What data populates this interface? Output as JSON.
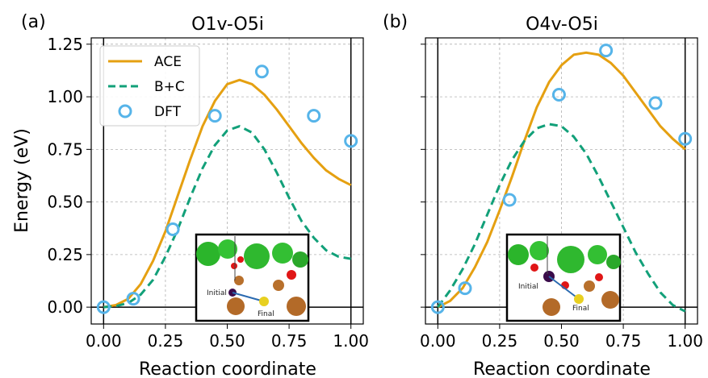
{
  "figure": {
    "ylabel": "Energy (eV)",
    "legend": {
      "placement": "top-left of panel (a)",
      "entries": [
        {
          "label": "ACE",
          "style": "solid line",
          "color": "#E5A011"
        },
        {
          "label": "B+C",
          "style": "dashed line",
          "color": "#12A079"
        },
        {
          "label": "DFT",
          "style": "open circle",
          "color": "#56B4E9"
        }
      ]
    },
    "inset_labels": {
      "initial": "Initial",
      "final": "Final"
    }
  },
  "chart_data": [
    {
      "type": "line",
      "panel_letter": "(a)",
      "title": "O1v-O5i",
      "xlabel": "Reaction coordinate",
      "ylabel": "Energy (eV)",
      "xlim": [
        -0.05,
        1.05
      ],
      "ylim": [
        -0.08,
        1.28
      ],
      "xticks": [
        "0.00",
        "0.25",
        "0.50",
        "0.75",
        "1.00"
      ],
      "yticks": [
        "0.00",
        "0.25",
        "0.50",
        "0.75",
        "1.00",
        "1.25"
      ],
      "grid": true,
      "series": [
        {
          "name": "ACE",
          "color": "#E5A011",
          "style": "solid",
          "x": [
            0.0,
            0.05,
            0.1,
            0.15,
            0.2,
            0.25,
            0.3,
            0.35,
            0.4,
            0.45,
            0.5,
            0.55,
            0.6,
            0.65,
            0.7,
            0.75,
            0.8,
            0.85,
            0.9,
            0.95,
            1.0
          ],
          "y": [
            0.0,
            0.01,
            0.04,
            0.11,
            0.22,
            0.36,
            0.53,
            0.7,
            0.86,
            0.98,
            1.06,
            1.08,
            1.06,
            1.01,
            0.94,
            0.86,
            0.78,
            0.71,
            0.65,
            0.61,
            0.58
          ]
        },
        {
          "name": "B+C",
          "color": "#12A079",
          "style": "dashed",
          "x": [
            0.0,
            0.05,
            0.1,
            0.15,
            0.2,
            0.25,
            0.3,
            0.35,
            0.4,
            0.45,
            0.5,
            0.55,
            0.6,
            0.65,
            0.7,
            0.75,
            0.8,
            0.85,
            0.9,
            0.95,
            1.0
          ],
          "y": [
            0.0,
            0.005,
            0.02,
            0.06,
            0.13,
            0.24,
            0.37,
            0.52,
            0.66,
            0.77,
            0.84,
            0.86,
            0.83,
            0.75,
            0.64,
            0.52,
            0.41,
            0.33,
            0.27,
            0.24,
            0.23
          ]
        },
        {
          "name": "DFT",
          "color": "#56B4E9",
          "style": "markers",
          "x": [
            0.0,
            0.12,
            0.28,
            0.45,
            0.64,
            0.85,
            1.0
          ],
          "y": [
            0.0,
            0.04,
            0.37,
            0.91,
            1.12,
            0.91,
            0.79
          ]
        }
      ]
    },
    {
      "type": "line",
      "panel_letter": "(b)",
      "title": "O4v-O5i",
      "xlabel": "Reaction coordinate",
      "xlim": [
        -0.05,
        1.05
      ],
      "ylim": [
        -0.08,
        1.28
      ],
      "xticks": [
        "0.00",
        "0.25",
        "0.50",
        "0.75",
        "1.00"
      ],
      "grid": true,
      "series": [
        {
          "name": "ACE",
          "color": "#E5A011",
          "style": "solid",
          "x": [
            0.0,
            0.05,
            0.1,
            0.15,
            0.2,
            0.25,
            0.3,
            0.35,
            0.4,
            0.45,
            0.5,
            0.55,
            0.6,
            0.65,
            0.7,
            0.75,
            0.8,
            0.85,
            0.9,
            0.95,
            1.0
          ],
          "y": [
            0.0,
            0.03,
            0.09,
            0.19,
            0.31,
            0.46,
            0.62,
            0.79,
            0.95,
            1.07,
            1.15,
            1.2,
            1.21,
            1.2,
            1.16,
            1.1,
            1.02,
            0.94,
            0.86,
            0.8,
            0.75
          ]
        },
        {
          "name": "B+C",
          "color": "#12A079",
          "style": "dashed",
          "x": [
            0.0,
            0.05,
            0.1,
            0.15,
            0.2,
            0.25,
            0.3,
            0.35,
            0.4,
            0.45,
            0.5,
            0.55,
            0.6,
            0.65,
            0.7,
            0.75,
            0.8,
            0.85,
            0.9,
            0.95,
            1.0
          ],
          "y": [
            0.0,
            0.08,
            0.18,
            0.3,
            0.44,
            0.58,
            0.7,
            0.79,
            0.85,
            0.87,
            0.86,
            0.81,
            0.73,
            0.62,
            0.5,
            0.38,
            0.26,
            0.16,
            0.07,
            0.01,
            -0.02
          ]
        },
        {
          "name": "DFT",
          "color": "#56B4E9",
          "style": "markers",
          "x": [
            0.0,
            0.11,
            0.29,
            0.49,
            0.68,
            0.88,
            1.0
          ],
          "y": [
            0.0,
            0.09,
            0.51,
            1.01,
            1.22,
            0.97,
            0.8
          ]
        }
      ]
    }
  ]
}
